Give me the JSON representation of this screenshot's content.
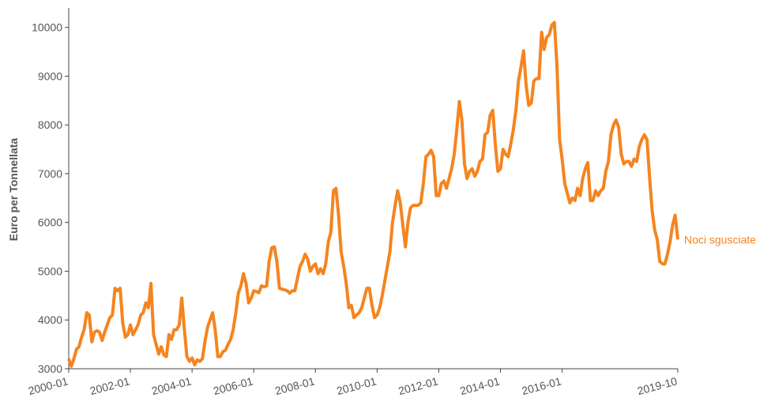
{
  "chart_data": {
    "type": "line",
    "y_label": "Euro per Tonnellata",
    "x": [
      "2000-01",
      "2000-02",
      "2000-03",
      "2000-04",
      "2000-05",
      "2000-06",
      "2000-07",
      "2000-08",
      "2000-09",
      "2000-10",
      "2000-11",
      "2000-12",
      "2001-01",
      "2001-02",
      "2001-03",
      "2001-04",
      "2001-05",
      "2001-06",
      "2001-07",
      "2001-08",
      "2001-09",
      "2001-10",
      "2001-11",
      "2001-12",
      "2002-01",
      "2002-02",
      "2002-03",
      "2002-04",
      "2002-05",
      "2002-06",
      "2002-07",
      "2002-08",
      "2002-09",
      "2002-10",
      "2002-11",
      "2002-12",
      "2003-01",
      "2003-02",
      "2003-03",
      "2003-04",
      "2003-05",
      "2003-06",
      "2003-07",
      "2003-08",
      "2003-09",
      "2003-10",
      "2003-11",
      "2003-12",
      "2004-01",
      "2004-02",
      "2004-03",
      "2004-04",
      "2004-05",
      "2004-06",
      "2004-07",
      "2004-08",
      "2004-09",
      "2004-10",
      "2004-11",
      "2004-12",
      "2005-01",
      "2005-02",
      "2005-03",
      "2005-04",
      "2005-05",
      "2005-06",
      "2005-07",
      "2005-08",
      "2005-09",
      "2005-10",
      "2005-11",
      "2005-12",
      "2006-01",
      "2006-02",
      "2006-03",
      "2006-04",
      "2006-05",
      "2006-06",
      "2006-07",
      "2006-08",
      "2006-09",
      "2006-10",
      "2006-11",
      "2006-12",
      "2007-01",
      "2007-02",
      "2007-03",
      "2007-04",
      "2007-05",
      "2007-06",
      "2007-07",
      "2007-08",
      "2007-09",
      "2007-10",
      "2007-11",
      "2007-12",
      "2008-01",
      "2008-02",
      "2008-03",
      "2008-04",
      "2008-05",
      "2008-06",
      "2008-07",
      "2008-08",
      "2008-09",
      "2008-10",
      "2008-11",
      "2008-12",
      "2009-01",
      "2009-02",
      "2009-03",
      "2009-04",
      "2009-05",
      "2009-06",
      "2009-07",
      "2009-08",
      "2009-09",
      "2009-10",
      "2009-11",
      "2009-12",
      "2010-01",
      "2010-02",
      "2010-03",
      "2010-04",
      "2010-05",
      "2010-06",
      "2010-07",
      "2010-08",
      "2010-09",
      "2010-10",
      "2010-11",
      "2010-12",
      "2011-01",
      "2011-02",
      "2011-03",
      "2011-04",
      "2011-05",
      "2011-06",
      "2011-07",
      "2011-08",
      "2011-09",
      "2011-10",
      "2011-11",
      "2011-12",
      "2012-01",
      "2012-02",
      "2012-03",
      "2012-04",
      "2012-05",
      "2012-06",
      "2012-07",
      "2012-08",
      "2012-09",
      "2012-10",
      "2012-11",
      "2012-12",
      "2013-01",
      "2013-02",
      "2013-03",
      "2013-04",
      "2013-05",
      "2013-06",
      "2013-07",
      "2013-08",
      "2013-09",
      "2013-10",
      "2013-11",
      "2013-12",
      "2014-01",
      "2014-02",
      "2014-03",
      "2014-04",
      "2014-05",
      "2014-06",
      "2014-07",
      "2014-08",
      "2014-09",
      "2014-10",
      "2014-11",
      "2014-12",
      "2015-01",
      "2015-02",
      "2015-03",
      "2015-04",
      "2015-05",
      "2015-06",
      "2015-07",
      "2015-08",
      "2015-09",
      "2015-10",
      "2015-11",
      "2015-12",
      "2016-01",
      "2016-02",
      "2016-03",
      "2016-04",
      "2016-05",
      "2016-06",
      "2016-07",
      "2016-08",
      "2016-09",
      "2016-10",
      "2016-11",
      "2016-12",
      "2017-01",
      "2017-02",
      "2017-03",
      "2017-04",
      "2017-05",
      "2017-06",
      "2017-07",
      "2017-08",
      "2017-09",
      "2017-10",
      "2017-11",
      "2017-12",
      "2018-01",
      "2018-02",
      "2018-03",
      "2018-04",
      "2018-05",
      "2018-06",
      "2018-07",
      "2018-08",
      "2018-09",
      "2018-10",
      "2018-11",
      "2018-12",
      "2019-01",
      "2019-02",
      "2019-03",
      "2019-04",
      "2019-05",
      "2019-06",
      "2019-07",
      "2019-08",
      "2019-09",
      "2019-10"
    ],
    "series": [
      {
        "name": "Noci sgusciate",
        "color": "#f5841f",
        "values": [
          3200,
          3050,
          3200,
          3400,
          3450,
          3650,
          3800,
          4150,
          4100,
          3550,
          3750,
          3780,
          3750,
          3580,
          3750,
          3900,
          4050,
          4100,
          4650,
          4600,
          4650,
          3950,
          3650,
          3700,
          3900,
          3700,
          3800,
          3900,
          4100,
          4150,
          4350,
          4250,
          4750,
          3700,
          3500,
          3300,
          3450,
          3280,
          3250,
          3700,
          3600,
          3800,
          3800,
          3900,
          4450,
          3800,
          3250,
          3150,
          3220,
          3080,
          3180,
          3150,
          3200,
          3550,
          3850,
          4000,
          4150,
          3800,
          3250,
          3250,
          3350,
          3380,
          3500,
          3600,
          3800,
          4150,
          4550,
          4700,
          4950,
          4750,
          4350,
          4450,
          4600,
          4580,
          4560,
          4700,
          4680,
          4700,
          5200,
          5480,
          5500,
          5200,
          4650,
          4630,
          4620,
          4600,
          4550,
          4600,
          4600,
          4850,
          5100,
          5200,
          5350,
          5250,
          5000,
          5100,
          5150,
          4950,
          5050,
          4950,
          5150,
          5600,
          5800,
          6650,
          6700,
          6150,
          5400,
          5100,
          4750,
          4250,
          4300,
          4050,
          4100,
          4150,
          4250,
          4450,
          4650,
          4650,
          4300,
          4050,
          4100,
          4250,
          4500,
          4800,
          5100,
          5400,
          6000,
          6350,
          6650,
          6400,
          5950,
          5500,
          6000,
          6300,
          6350,
          6350,
          6350,
          6400,
          6800,
          7350,
          7400,
          7480,
          7350,
          6550,
          6550,
          6800,
          6850,
          6700,
          6900,
          7100,
          7400,
          7900,
          8480,
          8100,
          7200,
          6900,
          7050,
          7100,
          6950,
          7050,
          7250,
          7300,
          7800,
          7850,
          8200,
          8300,
          7600,
          7050,
          7100,
          7500,
          7400,
          7350,
          7600,
          7900,
          8300,
          8900,
          9200,
          9520,
          8800,
          8400,
          8450,
          8900,
          8950,
          8950,
          9900,
          9550,
          9800,
          9850,
          10050,
          10100,
          9200,
          7700,
          7300,
          6800,
          6600,
          6400,
          6500,
          6450,
          6700,
          6550,
          6900,
          7100,
          7230,
          6450,
          6450,
          6650,
          6550,
          6650,
          6700,
          7050,
          7250,
          7800,
          8000,
          8100,
          7950,
          7400,
          7200,
          7250,
          7250,
          7150,
          7300,
          7250,
          7550,
          7700,
          7800,
          7700,
          6950,
          6250,
          5850,
          5650,
          5200,
          5150,
          5150,
          5350,
          5600,
          5950,
          6150,
          5650
        ]
      }
    ],
    "ylim": [
      3000,
      10400
    ],
    "yticks": [
      3000,
      4000,
      5000,
      6000,
      7000,
      8000,
      9000,
      10000
    ],
    "xticks": [
      "2000-01",
      "2002-01",
      "2004-01",
      "2006-01",
      "2008-01",
      "2010-01",
      "2012-01",
      "2014-01",
      "2016-01",
      "2019-10"
    ],
    "grid": false
  }
}
